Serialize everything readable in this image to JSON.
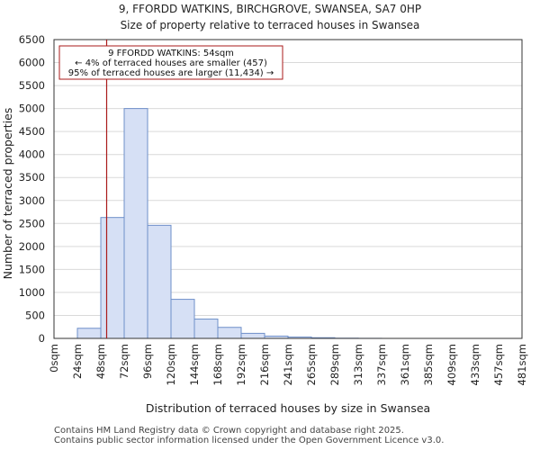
{
  "chart_data": {
    "type": "bar",
    "title": "9, FFORDD WATKINS, BIRCHGROVE, SWANSEA, SA7 0HP",
    "subtitle": "Size of property relative to terraced houses in Swansea",
    "xlabel": "Distribution of terraced houses by size in Swansea",
    "ylabel": "Number of terraced properties",
    "categories": [
      "0sqm",
      "24sqm",
      "48sqm",
      "72sqm",
      "96sqm",
      "120sqm",
      "144sqm",
      "168sqm",
      "192sqm",
      "216sqm",
      "241sqm",
      "265sqm",
      "289sqm",
      "313sqm",
      "337sqm",
      "361sqm",
      "385sqm",
      "409sqm",
      "433sqm",
      "457sqm",
      "481sqm"
    ],
    "values": [
      0,
      220,
      2630,
      5000,
      2460,
      850,
      420,
      240,
      110,
      50,
      30,
      15,
      5,
      2,
      0,
      0,
      0,
      0,
      0,
      0,
      0
    ],
    "ylim": [
      0,
      6500
    ],
    "yticks": [
      0,
      500,
      1000,
      1500,
      2000,
      2500,
      3000,
      3500,
      4000,
      4500,
      5000,
      5500,
      6000,
      6500
    ],
    "grid": true,
    "bar_color": "#d6e0f5",
    "bar_edge_color": "#6e8fc9",
    "marker": {
      "value_sqm": 54,
      "color": "#aa1a1a",
      "annotation": {
        "line1": "9 FFORDD WATKINS: 54sqm",
        "line2": "← 4% of terraced houses are smaller (457)",
        "line3": "95% of terraced houses are larger (11,434) →"
      }
    }
  },
  "footer": {
    "line1": "Contains HM Land Registry data © Crown copyright and database right 2025.",
    "line2": "Contains public sector information licensed under the Open Government Licence v3.0."
  }
}
